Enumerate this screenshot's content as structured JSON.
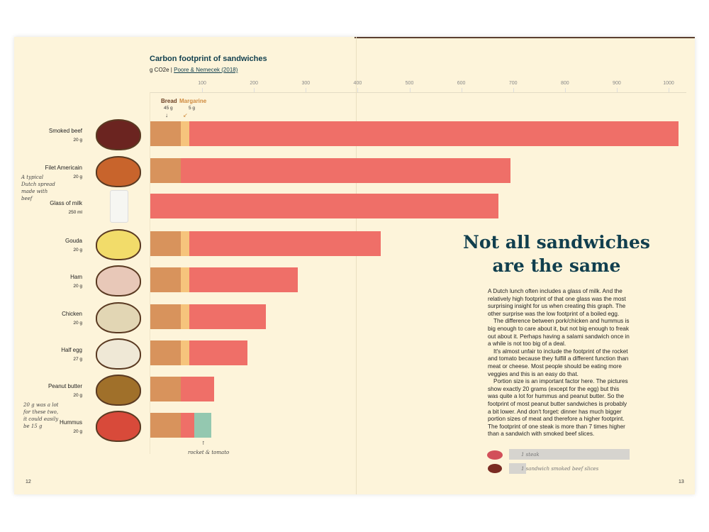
{
  "chart_data": {
    "type": "bar",
    "orientation": "horizontal",
    "stacked": true,
    "title": "Carbon footprint of sandwiches",
    "unit": "g CO2e",
    "source": "Poore & Nemecek (2018)",
    "xlim": [
      0,
      1030
    ],
    "xticks": [
      100,
      200,
      300,
      400,
      500,
      600,
      700,
      800,
      900,
      1000
    ],
    "grid": false,
    "legend": {
      "bread": {
        "label": "Bread",
        "amount": "45 g"
      },
      "margarine": {
        "label": "Margarine",
        "amount": "5 g"
      }
    },
    "categories": [
      {
        "label": "Smoked beef",
        "amount": "20 g",
        "bread": 59,
        "margarine": 16,
        "topping": 944,
        "extra": 0
      },
      {
        "label": "Filet Americain",
        "amount": "20 g",
        "bread": 59,
        "margarine": 0,
        "topping": 636,
        "extra": 0
      },
      {
        "label": "Glass of milk",
        "amount": "250 ml",
        "bread": 0,
        "margarine": 0,
        "topping": 672,
        "extra": 0
      },
      {
        "label": "Gouda",
        "amount": "20 g",
        "bread": 59,
        "margarine": 16,
        "topping": 370,
        "extra": 0
      },
      {
        "label": "Ham",
        "amount": "20 g",
        "bread": 59,
        "margarine": 16,
        "topping": 210,
        "extra": 0
      },
      {
        "label": "Chicken",
        "amount": "20 g",
        "bread": 59,
        "margarine": 16,
        "topping": 148,
        "extra": 0
      },
      {
        "label": "Half egg",
        "amount": "27 g",
        "bread": 59,
        "margarine": 16,
        "topping": 112,
        "extra": 0
      },
      {
        "label": "Peanut butter",
        "amount": "20 g",
        "bread": 59,
        "margarine": 0,
        "topping": 64,
        "extra": 0
      },
      {
        "label": "Hummus",
        "amount": "20 g",
        "bread": 59,
        "margarine": 0,
        "topping": 26,
        "extra": 33
      }
    ],
    "annotations": {
      "filet": "A typical Dutch spread made with beef",
      "portion": "20 g was a lot for these two, it could easily be 15 g",
      "extra": "rocket & tomato"
    }
  },
  "colors": {
    "bread": "#d8935c",
    "margarine": "#f6c47c",
    "topping": "#ef6f68",
    "extra": "#94c8b0",
    "heading": "#113f4e"
  },
  "article": {
    "heading_line1": "Not all sandwiches",
    "heading_line2": "are the same",
    "paragraphs": [
      "A Dutch lunch often includes a glass of milk. And the relatively high footprint of that one glass was the most surprising insight for us when creating this graph. The other surprise was the low footprint of a boiled egg.",
      "The difference between pork/chicken and hummus is big enough to care about it, but not big enough to freak out about it. Perhaps having a salami sandwich once in a while is not too big of a deal.",
      "It's almost unfair to include the footprint of the rocket and tomato because they fulfill a different function than meat or cheese. Most people should be eating more veggies and this is an easy do that.",
      "Portion size is an important factor here. The pictures show exactly 20 grams (except for the egg) but this was quite a lot for hummus and peanut butter. So the footprint of most peanut butter sandwiches is probably a bit lower. And don't forget: dinner has much bigger portion sizes of meat and therefore a higher footprint. The footprint of one steak is more than 7 times higher than a sandwich with smoked beef slices."
    ],
    "comparison": [
      {
        "label": "1 steak",
        "relative": 7.2
      },
      {
        "label": "1 sandwich smoked beef slices",
        "relative": 1
      }
    ]
  },
  "pages": {
    "left": "12",
    "right": "13"
  }
}
